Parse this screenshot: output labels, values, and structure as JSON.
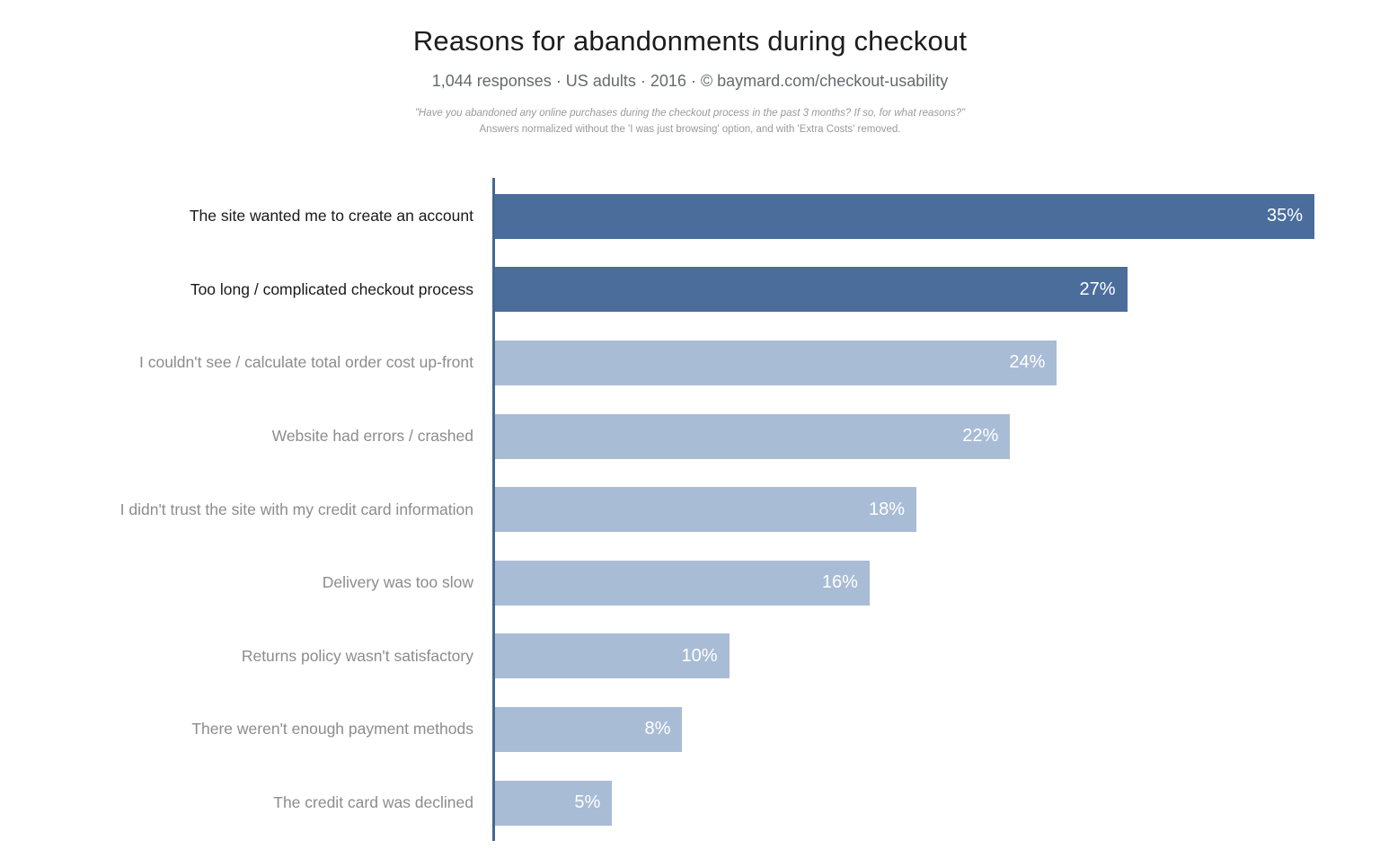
{
  "header": {
    "title": "Reasons for abandonments during checkout",
    "subtitle": "1,044 responses  ·  US adults  ·  2016  ·  ©  baymard.com/checkout-usability",
    "note_line1": "\"Have you abandoned any online purchases during the checkout process in the past 3 months? If so, for what reasons?\"",
    "note_line2": "Answers normalized without the 'I was just browsing' option, and with 'Extra Costs' removed."
  },
  "chart_data": {
    "type": "bar",
    "orientation": "horizontal",
    "title": "Reasons for abandonments during checkout",
    "categories": [
      "The site wanted me to create an account",
      "Too long / complicated checkout process",
      "I couldn't see / calculate total order cost up-front",
      "Website had errors / crashed",
      "I didn't trust the site with my credit card information",
      "Delivery was too slow",
      "Returns policy wasn't satisfactory",
      "There weren't enough payment methods",
      "The credit card was declined"
    ],
    "values": [
      35,
      27,
      24,
      22,
      18,
      16,
      10,
      8,
      5
    ],
    "value_suffix": "%",
    "xmax": 35,
    "highlight_count": 2,
    "colors": {
      "bar_highlight": "#4a6d9c",
      "bar_default": "#a9bcd6",
      "label_highlight": "#1a1a1a",
      "label_default": "#8c8c8c",
      "axis": "#44688f",
      "value_text": "#ffffff"
    },
    "legend": "none",
    "grid": "off"
  }
}
